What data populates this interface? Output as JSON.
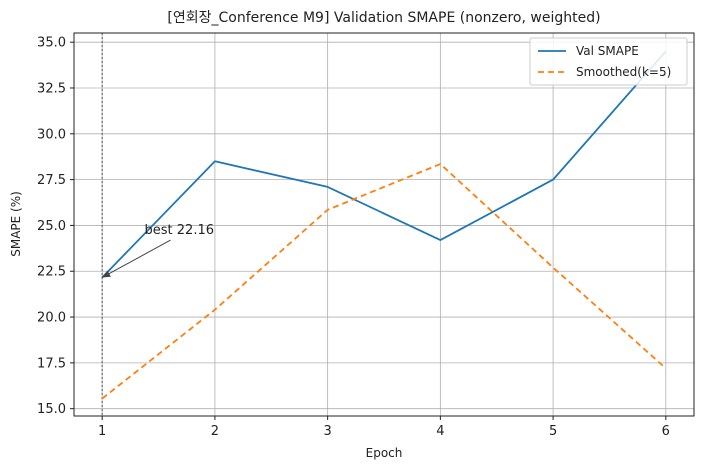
{
  "chart_data": {
    "type": "line",
    "title": "[연회장_Conference M9] Validation SMAPE (nonzero, weighted)",
    "xlabel": "Epoch",
    "ylabel": "SMAPE (%)",
    "x": [
      1,
      2,
      3,
      4,
      5,
      6
    ],
    "xlim": [
      0.75,
      6.25
    ],
    "ylim": [
      14.6,
      35.5
    ],
    "xticks": [
      "1",
      "2",
      "3",
      "4",
      "5",
      "6"
    ],
    "yticks": [
      "15.0",
      "17.5",
      "20.0",
      "22.5",
      "25.0",
      "27.5",
      "30.0",
      "32.5",
      "35.0"
    ],
    "ytick_values": [
      15.0,
      17.5,
      20.0,
      22.5,
      25.0,
      27.5,
      30.0,
      32.5,
      35.0
    ],
    "grid": true,
    "legend_position": "top-right",
    "series": [
      {
        "name": "Val SMAPE",
        "values": [
          22.16,
          28.5,
          27.1,
          24.2,
          27.5,
          34.5
        ],
        "color": "#1f77b4",
        "style": "solid"
      },
      {
        "name": "Smoothed(k=5)",
        "values": [
          15.55,
          20.4,
          25.85,
          28.35,
          22.7,
          17.2
        ],
        "color": "#ff7f0e",
        "style": "dashed"
      }
    ],
    "best_marker": {
      "x": 1,
      "color": "#7f7f7f",
      "style": "dotted"
    },
    "annotation": {
      "text": "best 22.16",
      "x": 1,
      "y": 22.16,
      "text_x": 1.5,
      "text_y": 24.2
    }
  }
}
